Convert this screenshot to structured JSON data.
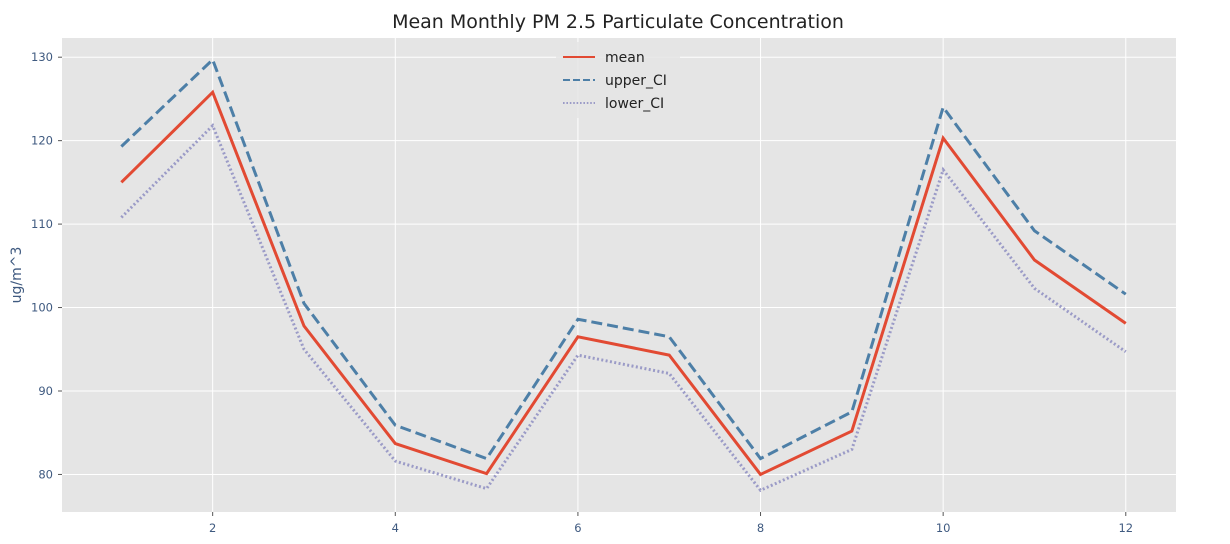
{
  "chart_data": {
    "type": "line",
    "title": "Mean Monthly PM 2.5 Particulate Concentration",
    "xlabel": "",
    "ylabel": "ug/m^3",
    "x": [
      1,
      2,
      3,
      4,
      5,
      6,
      7,
      8,
      9,
      10,
      11,
      12
    ],
    "xticks": [
      2,
      4,
      6,
      8,
      10,
      12
    ],
    "yticks": [
      80,
      90,
      100,
      110,
      120,
      130
    ],
    "xlim": [
      0.35,
      12.55
    ],
    "ylim": [
      75.5,
      132.3
    ],
    "grid": true,
    "legend_position": "top-center",
    "series": [
      {
        "name": "mean",
        "color": "#e24a33",
        "style": "solid",
        "values": [
          115.0,
          125.8,
          97.8,
          83.7,
          80.1,
          96.5,
          94.3,
          80.0,
          85.2,
          120.3,
          105.7,
          98.1
        ]
      },
      {
        "name": "upper_CI",
        "color": "#4d7fa7",
        "style": "dashed",
        "values": [
          119.3,
          129.7,
          100.5,
          85.9,
          81.9,
          98.6,
          96.5,
          81.9,
          87.5,
          124.0,
          109.2,
          101.6
        ]
      },
      {
        "name": "lower_CI",
        "color": "#9b9bc7",
        "style": "dotted",
        "values": [
          110.8,
          121.8,
          95.0,
          81.6,
          78.3,
          94.3,
          92.1,
          78.1,
          83.0,
          116.5,
          102.3,
          94.7
        ]
      }
    ]
  }
}
